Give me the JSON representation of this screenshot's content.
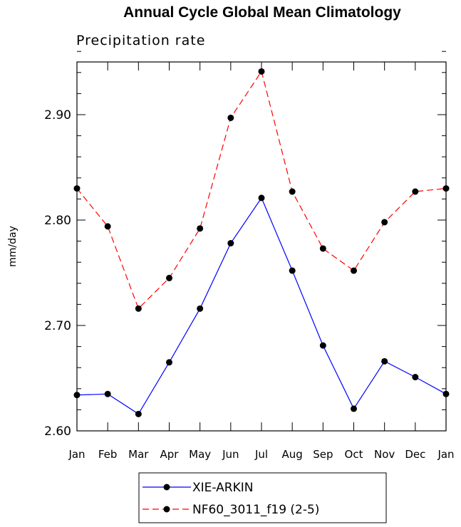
{
  "chart_data": {
    "type": "line",
    "title": "Annual Cycle Global Mean Climatology",
    "subtitle": "Precipitation rate",
    "xlabel": "",
    "ylabel": "mm/day",
    "categories": [
      "Jan",
      "Feb",
      "Mar",
      "Apr",
      "May",
      "Jun",
      "Jul",
      "Aug",
      "Sep",
      "Oct",
      "Nov",
      "Dec",
      "Jan"
    ],
    "ylim": [
      2.6,
      2.95
    ],
    "yticks": [
      "2.60",
      "2.70",
      "2.80",
      "2.90"
    ],
    "legend_position": "bottom-center",
    "series": [
      {
        "name": "XIE-ARKIN",
        "color": "#0000ff",
        "line_style": "solid",
        "marker": "filled-circle",
        "values": [
          2.634,
          2.635,
          2.616,
          2.665,
          2.716,
          2.778,
          2.821,
          2.752,
          2.681,
          2.621,
          2.666,
          2.651,
          2.635
        ]
      },
      {
        "name": "NF60_3011_f19 (2-5)",
        "color": "#ff0000",
        "line_style": "dashed",
        "marker": "filled-circle",
        "values": [
          2.83,
          2.794,
          2.716,
          2.745,
          2.792,
          2.897,
          2.941,
          2.827,
          2.773,
          2.752,
          2.798,
          2.827,
          2.83
        ]
      }
    ]
  }
}
